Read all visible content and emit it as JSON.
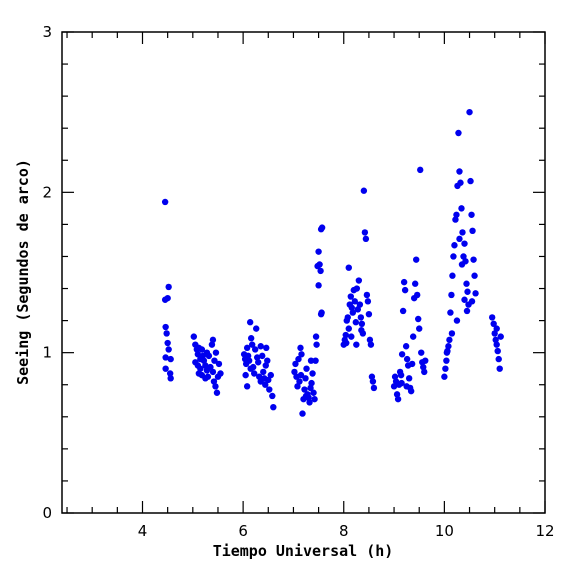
{
  "chart_data": {
    "type": "scatter",
    "title": "",
    "xlabel": "Tiempo Universal (h)",
    "ylabel": "Seeing (Segundos de arco)",
    "xlim": [
      2.4,
      12.0
    ],
    "ylim": [
      0,
      3
    ],
    "xticks": [
      4,
      6,
      8,
      10,
      12
    ],
    "yticks": [
      0,
      1,
      2,
      3
    ],
    "grid": false,
    "legend": "none",
    "marker_color": "#0000ee",
    "series": [
      {
        "points": [
          [
            4.45,
            1.94
          ],
          [
            4.45,
            1.33
          ],
          [
            4.5,
            1.34
          ],
          [
            4.52,
            1.41
          ],
          [
            4.46,
            1.16
          ],
          [
            4.48,
            1.12
          ],
          [
            4.5,
            1.06
          ],
          [
            4.46,
            0.97
          ],
          [
            4.52,
            1.02
          ],
          [
            4.56,
            0.96
          ],
          [
            4.46,
            0.9
          ],
          [
            4.55,
            0.87
          ],
          [
            4.56,
            0.84
          ],
          [
            5.02,
            1.1
          ],
          [
            5.05,
            1.05
          ],
          [
            5.08,
            1.02
          ],
          [
            5.1,
            0.99
          ],
          [
            5.12,
            1.03
          ],
          [
            5.15,
            0.96
          ],
          [
            5.05,
            0.94
          ],
          [
            5.1,
            0.92
          ],
          [
            5.15,
            0.9
          ],
          [
            5.18,
            1.02
          ],
          [
            5.2,
            0.98
          ],
          [
            5.22,
            0.95
          ],
          [
            5.25,
            0.92
          ],
          [
            5.28,
            0.89
          ],
          [
            5.12,
            0.87
          ],
          [
            5.18,
            0.86
          ],
          [
            5.25,
            0.84
          ],
          [
            5.3,
            0.85
          ],
          [
            5.32,
            0.98
          ],
          [
            5.35,
            0.91
          ],
          [
            5.38,
            1.05
          ],
          [
            5.4,
            0.88
          ],
          [
            5.42,
            0.82
          ],
          [
            5.45,
            0.79
          ],
          [
            5.48,
            0.75
          ],
          [
            5.43,
            0.95
          ],
          [
            5.46,
            1.0
          ],
          [
            5.5,
            0.85
          ],
          [
            5.52,
            0.93
          ],
          [
            5.55,
            0.87
          ],
          [
            5.4,
            1.08
          ],
          [
            5.28,
            1.0
          ],
          [
            6.02,
            0.99
          ],
          [
            6.04,
            0.96
          ],
          [
            6.06,
            0.93
          ],
          [
            6.08,
            1.03
          ],
          [
            6.1,
            0.98
          ],
          [
            6.12,
            0.95
          ],
          [
            6.14,
            1.19
          ],
          [
            6.16,
            1.09
          ],
          [
            6.18,
            1.05
          ],
          [
            6.05,
            0.86
          ],
          [
            6.08,
            0.79
          ],
          [
            6.15,
            0.9
          ],
          [
            6.2,
            0.91
          ],
          [
            6.22,
            0.87
          ],
          [
            6.24,
            1.02
          ],
          [
            6.26,
            1.15
          ],
          [
            6.28,
            0.97
          ],
          [
            6.3,
            0.94
          ],
          [
            6.32,
            0.85
          ],
          [
            6.35,
            0.82
          ],
          [
            6.38,
            0.98
          ],
          [
            6.4,
            0.88
          ],
          [
            6.42,
            0.84
          ],
          [
            6.44,
            0.8
          ],
          [
            6.46,
            1.03
          ],
          [
            6.48,
            0.95
          ],
          [
            6.5,
            0.83
          ],
          [
            6.52,
            0.77
          ],
          [
            6.55,
            0.86
          ],
          [
            6.58,
            0.73
          ],
          [
            6.6,
            0.66
          ],
          [
            6.45,
            0.92
          ],
          [
            6.35,
            1.04
          ],
          [
            7.02,
            0.88
          ],
          [
            7.04,
            0.93
          ],
          [
            7.06,
            0.85
          ],
          [
            7.08,
            0.79
          ],
          [
            7.1,
            0.96
          ],
          [
            7.12,
            0.82
          ],
          [
            7.14,
            1.03
          ],
          [
            7.16,
            0.99
          ],
          [
            7.18,
            0.62
          ],
          [
            7.2,
            0.71
          ],
          [
            7.22,
            0.77
          ],
          [
            7.24,
            0.84
          ],
          [
            7.26,
            0.9
          ],
          [
            7.28,
            0.74
          ],
          [
            7.3,
            0.72
          ],
          [
            7.32,
            0.69
          ],
          [
            7.34,
            0.78
          ],
          [
            7.36,
            0.81
          ],
          [
            7.38,
            0.87
          ],
          [
            7.4,
            0.75
          ],
          [
            7.42,
            0.71
          ],
          [
            7.44,
            0.95
          ],
          [
            7.46,
            1.05
          ],
          [
            7.48,
            1.54
          ],
          [
            7.5,
            1.63
          ],
          [
            7.52,
            1.55
          ],
          [
            7.54,
            1.51
          ],
          [
            7.55,
            1.77
          ],
          [
            7.57,
            1.78
          ],
          [
            7.5,
            1.42
          ],
          [
            7.55,
            1.24
          ],
          [
            7.56,
            1.25
          ],
          [
            7.45,
            1.1
          ],
          [
            7.35,
            0.95
          ],
          [
            7.25,
            0.73
          ],
          [
            7.15,
            0.86
          ],
          [
            8.0,
            1.05
          ],
          [
            8.02,
            1.08
          ],
          [
            8.04,
            1.11
          ],
          [
            8.06,
            1.2
          ],
          [
            8.08,
            1.22
          ],
          [
            8.1,
            1.15
          ],
          [
            8.12,
            1.3
          ],
          [
            8.14,
            1.35
          ],
          [
            8.16,
            1.28
          ],
          [
            8.18,
            1.25
          ],
          [
            8.2,
            1.39
          ],
          [
            8.22,
            1.32
          ],
          [
            8.24,
            1.19
          ],
          [
            8.26,
            1.4
          ],
          [
            8.28,
            1.27
          ],
          [
            8.3,
            1.45
          ],
          [
            8.32,
            1.3
          ],
          [
            8.34,
            1.22
          ],
          [
            8.36,
            1.18
          ],
          [
            8.38,
            1.12
          ],
          [
            8.4,
            2.01
          ],
          [
            8.42,
            1.75
          ],
          [
            8.44,
            1.71
          ],
          [
            8.46,
            1.36
          ],
          [
            8.48,
            1.32
          ],
          [
            8.5,
            1.24
          ],
          [
            8.52,
            1.08
          ],
          [
            8.54,
            1.05
          ],
          [
            8.56,
            0.85
          ],
          [
            8.58,
            0.82
          ],
          [
            8.6,
            0.78
          ],
          [
            8.1,
            1.53
          ],
          [
            8.05,
            1.06
          ],
          [
            8.15,
            1.1
          ],
          [
            8.25,
            1.05
          ],
          [
            8.35,
            1.14
          ],
          [
            9.0,
            0.79
          ],
          [
            9.02,
            0.85
          ],
          [
            9.04,
            0.82
          ],
          [
            9.06,
            0.74
          ],
          [
            9.08,
            0.71
          ],
          [
            9.1,
            0.8
          ],
          [
            9.12,
            0.88
          ],
          [
            9.14,
            0.86
          ],
          [
            9.16,
            0.99
          ],
          [
            9.18,
            1.26
          ],
          [
            9.2,
            1.44
          ],
          [
            9.22,
            1.39
          ],
          [
            9.24,
            1.04
          ],
          [
            9.26,
            0.96
          ],
          [
            9.28,
            0.92
          ],
          [
            9.3,
            0.84
          ],
          [
            9.32,
            0.78
          ],
          [
            9.34,
            0.76
          ],
          [
            9.36,
            0.93
          ],
          [
            9.38,
            1.1
          ],
          [
            9.4,
            1.34
          ],
          [
            9.42,
            1.43
          ],
          [
            9.44,
            1.58
          ],
          [
            9.46,
            1.36
          ],
          [
            9.48,
            1.21
          ],
          [
            9.5,
            1.15
          ],
          [
            9.52,
            2.14
          ],
          [
            9.54,
            1.0
          ],
          [
            9.56,
            0.94
          ],
          [
            9.58,
            0.91
          ],
          [
            9.6,
            0.88
          ],
          [
            9.62,
            0.95
          ],
          [
            9.15,
            0.81
          ],
          [
            9.25,
            0.79
          ],
          [
            10.0,
            0.85
          ],
          [
            10.02,
            0.9
          ],
          [
            10.04,
            0.95
          ],
          [
            10.06,
            1.01
          ],
          [
            10.08,
            1.04
          ],
          [
            10.1,
            1.08
          ],
          [
            10.12,
            1.25
          ],
          [
            10.14,
            1.36
          ],
          [
            10.16,
            1.48
          ],
          [
            10.18,
            1.6
          ],
          [
            10.2,
            1.67
          ],
          [
            10.22,
            1.83
          ],
          [
            10.24,
            1.86
          ],
          [
            10.26,
            2.04
          ],
          [
            10.28,
            2.37
          ],
          [
            10.3,
            2.13
          ],
          [
            10.32,
            2.06
          ],
          [
            10.34,
            1.9
          ],
          [
            10.36,
            1.75
          ],
          [
            10.38,
            1.6
          ],
          [
            10.4,
            1.68
          ],
          [
            10.42,
            1.57
          ],
          [
            10.44,
            1.43
          ],
          [
            10.46,
            1.38
          ],
          [
            10.48,
            1.3
          ],
          [
            10.5,
            2.5
          ],
          [
            10.52,
            2.07
          ],
          [
            10.54,
            1.86
          ],
          [
            10.56,
            1.76
          ],
          [
            10.58,
            1.58
          ],
          [
            10.6,
            1.48
          ],
          [
            10.62,
            1.37
          ],
          [
            10.3,
            1.71
          ],
          [
            10.35,
            1.55
          ],
          [
            10.25,
            1.2
          ],
          [
            10.4,
            1.33
          ],
          [
            10.45,
            1.26
          ],
          [
            10.55,
            1.32
          ],
          [
            10.05,
            1.0
          ],
          [
            10.15,
            1.12
          ],
          [
            10.95,
            1.22
          ],
          [
            10.98,
            1.18
          ],
          [
            11.0,
            1.12
          ],
          [
            11.02,
            1.08
          ],
          [
            11.04,
            1.05
          ],
          [
            11.06,
            1.01
          ],
          [
            11.08,
            0.96
          ],
          [
            11.1,
            0.9
          ],
          [
            11.12,
            1.1
          ],
          [
            11.04,
            1.15
          ]
        ]
      }
    ]
  }
}
